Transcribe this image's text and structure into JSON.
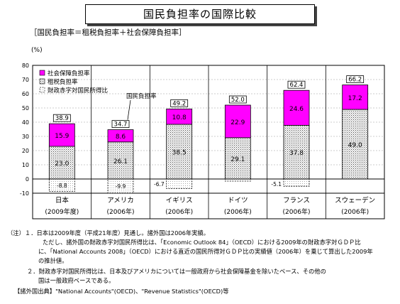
{
  "title": "国民負担率の国際比較",
  "formula": "［国民負担率＝租税負担率＋社会保障負担率］",
  "ylabel": "(%)",
  "callout": "国民負担率",
  "chart_data": {
    "type": "bar",
    "stacked": true,
    "categories": [
      "日本",
      "アメリカ",
      "イギリス",
      "ドイツ",
      "フランス",
      "スウェーデン"
    ],
    "category_years": [
      "(2009年度)",
      "(2006年)",
      "(2006年)",
      "(2006年)",
      "(2006年)",
      "(2006年)"
    ],
    "series": [
      {
        "name": "社会保障負担率",
        "color": "#ff00ff",
        "values": [
          15.9,
          8.6,
          10.8,
          22.9,
          24.6,
          17.2
        ]
      },
      {
        "name": "租税負担率",
        "color": "#d9d9d9",
        "values": [
          23.0,
          26.1,
          38.5,
          29.1,
          37.8,
          49.0
        ]
      },
      {
        "name": "財政赤字対国民所得比",
        "color": "#ffffff",
        "values": [
          -8.8,
          -9.9,
          -6.7,
          -1.5,
          -5.1,
          0
        ]
      }
    ],
    "totals": [
      38.9,
      34.7,
      49.2,
      52.0,
      62.4,
      66.2
    ],
    "deficit_labels": [
      "-8.8",
      "-9.9",
      "-6.7",
      "",
      "-5.1",
      ""
    ],
    "ylim": [
      -10,
      80
    ],
    "yticks": [
      -10,
      0,
      10,
      20,
      30,
      40,
      50,
      60,
      70,
      80
    ],
    "grid": true,
    "legend_position": "top-left"
  },
  "notes": [
    "（注）１．日本は2009年度（平成21年度）見通し。諸外国は2006年実績。",
    "ただし、諸外国の財政赤字対国民所得比は、「Economic Outlook 84」（OECD）における2009年の財政赤字対ＧＤＰ比",
    "に、「National Accounts 2008」（OECD）における直近の国民所得対ＧＤＰ比の実績値（2006年）を乗じて算出した2009年",
    "の推計値。",
    "２．財政赤字対国民所得比は、日本及びアメリカについては一般政府から社会保障基金を除いたベース、その他の",
    "国は一般政府ベースである。",
    "【諸外国出典】\"National Accounts\"(OECD)、\"Revenue Statistics\"(OECD)等"
  ]
}
